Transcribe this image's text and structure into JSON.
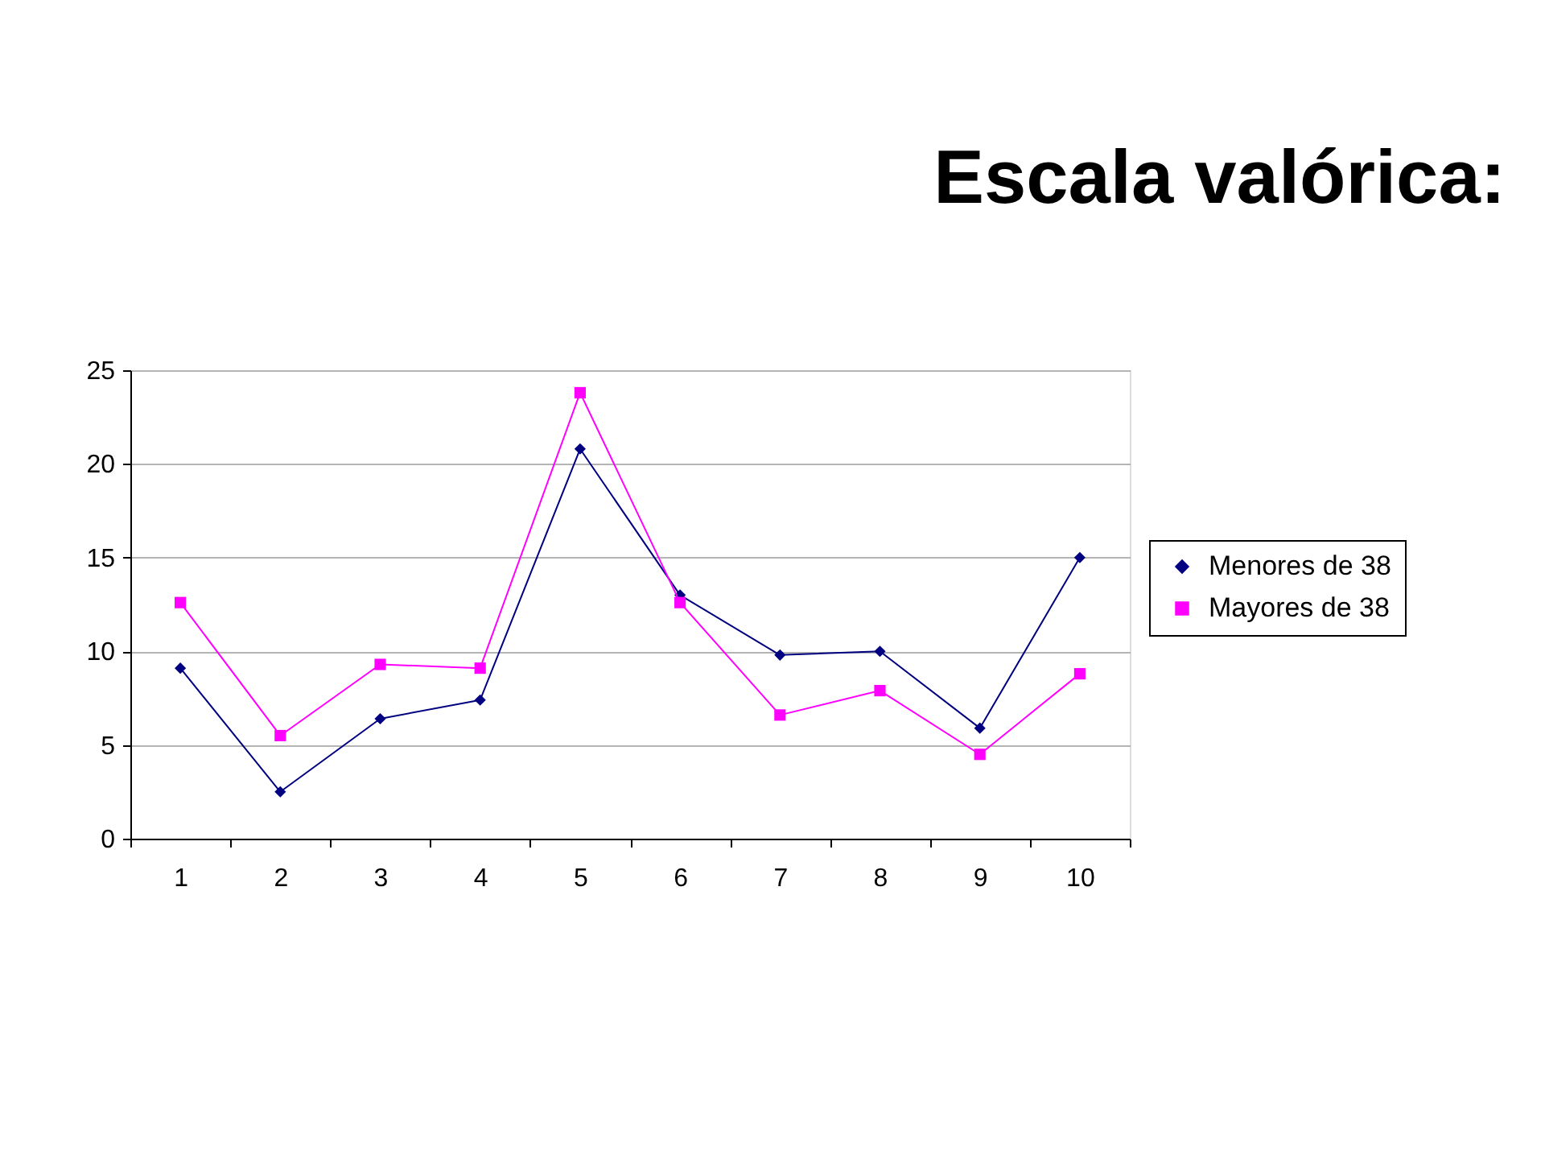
{
  "chart_data": {
    "type": "line",
    "title": "Escala valórica:",
    "categories": [
      "1",
      "2",
      "3",
      "4",
      "5",
      "6",
      "7",
      "8",
      "9",
      "10"
    ],
    "series": [
      {
        "name": "Menores de 38",
        "color": "#000080",
        "marker": "diamond",
        "values": [
          9.1,
          2.5,
          6.4,
          7.4,
          20.8,
          13.0,
          9.8,
          10.0,
          5.9,
          15.0
        ]
      },
      {
        "name": "Mayores de 38",
        "color": "#ff00ff",
        "marker": "square",
        "values": [
          12.6,
          5.5,
          9.3,
          9.1,
          23.8,
          12.6,
          6.6,
          7.9,
          4.5,
          8.8
        ]
      }
    ],
    "ylim": [
      0,
      25
    ],
    "yticks": [
      0,
      5,
      10,
      15,
      20,
      25
    ],
    "grid": "y",
    "legend": "right",
    "line_style": "solid"
  }
}
